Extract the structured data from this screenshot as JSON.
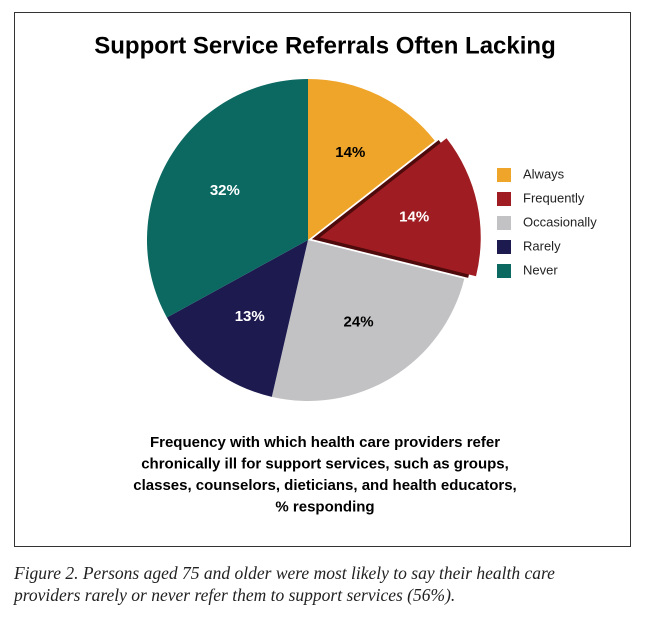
{
  "chart_data": {
    "type": "pie",
    "title": "Support Service Referrals Often Lacking",
    "categories": [
      "Always",
      "Frequently",
      "Occasionally",
      "Rarely",
      "Never"
    ],
    "values": [
      14,
      14,
      24,
      13,
      32
    ],
    "value_labels": [
      "14%",
      "14%",
      "24%",
      "13%",
      "32%"
    ],
    "colors": [
      "#efa52a",
      "#9f1d22",
      "#c2c2c4",
      "#1d1a50",
      "#0b6962"
    ],
    "label_colors": [
      "#000000",
      "#ffffff",
      "#000000",
      "#ffffff",
      "#ffffff"
    ],
    "exploded": [
      false,
      true,
      false,
      false,
      false
    ],
    "legend": "right",
    "description": [
      "Frequency with which health care providers refer",
      "chronically ill for support services, such as groups,",
      "classes, counselors, dieticians, and health educators,",
      "% responding"
    ],
    "caption": [
      "Figure 2. Persons aged 75 and older were most likely to say their health care",
      "providers rarely or never refer them to support services (56%)."
    ]
  }
}
